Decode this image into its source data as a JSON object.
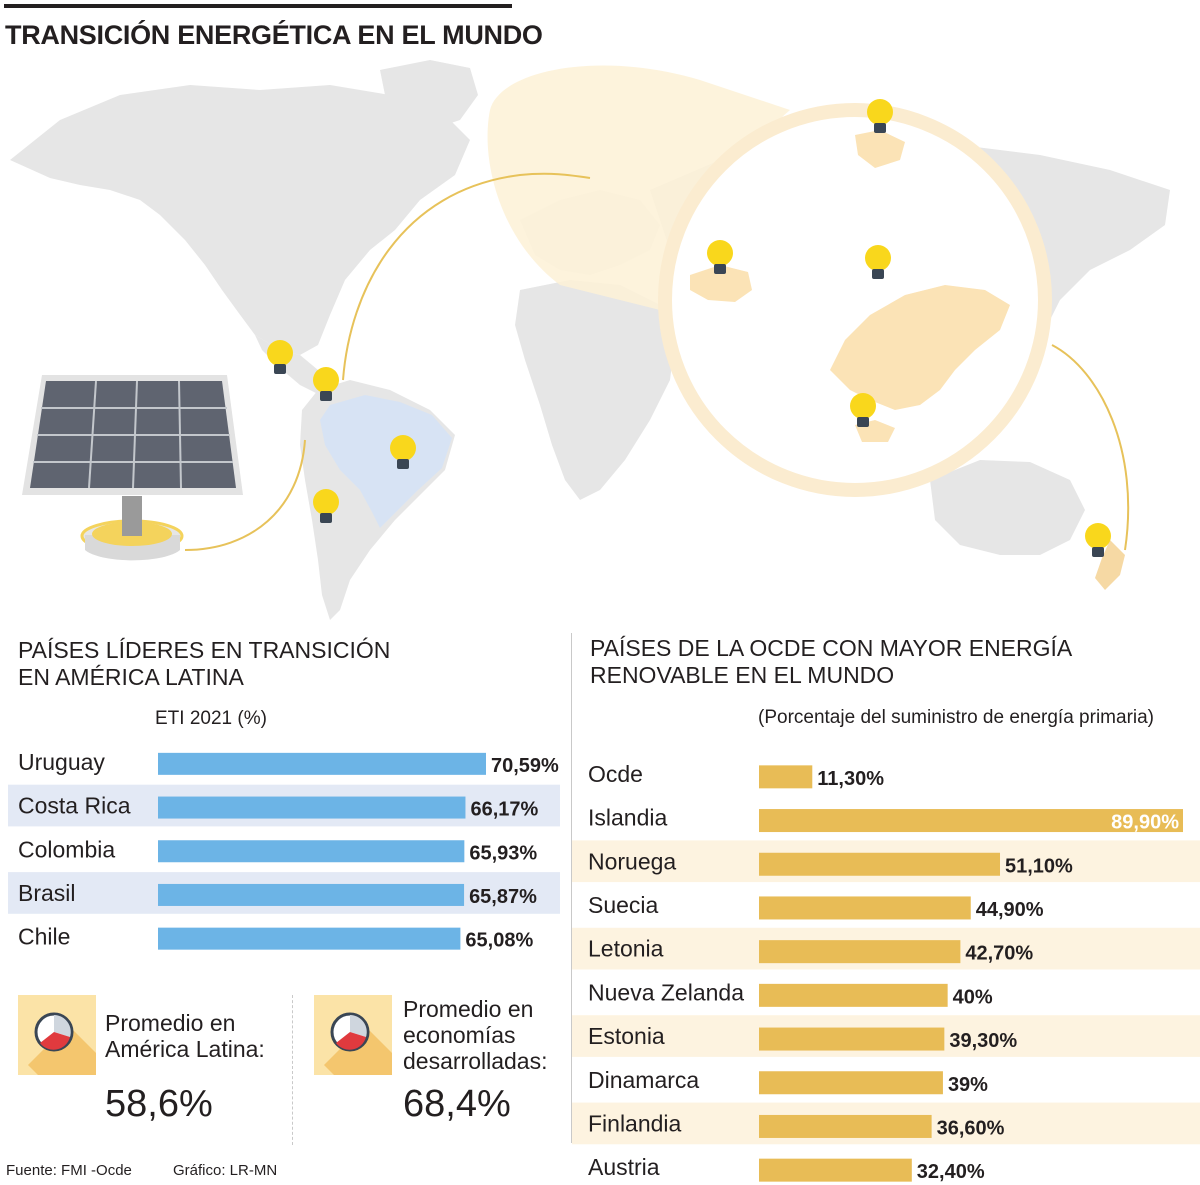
{
  "title": "TRANSICIÓN ENERGÉTICA EN EL MUNDO",
  "colors": {
    "latam_bar": "#6cb4e6",
    "ocde_bar": "#e8bc56",
    "band_blue": "#e3e9f5",
    "band_yellow": "#fdf3e0",
    "highlight_bulb": "#f9d71c"
  },
  "latam": {
    "title_line1": "PAÍSES LÍDERES EN TRANSICIÓN",
    "title_line2": "EN AMÉRICA LATINA",
    "metric_label": "ETI 2021 (%)"
  },
  "ocde": {
    "title_line1": "PAÍSES DE LA OCDE CON MAYOR ENERGÍA",
    "title_line2": "RENOVABLE EN EL MUNDO",
    "metric_label": "(Porcentaje del suministro de energía primaria)"
  },
  "chart_data": [
    {
      "type": "bar",
      "orientation": "horizontal",
      "title": "PAÍSES LÍDERES EN TRANSICIÓN EN AMÉRICA LATINA",
      "subtitle": "ETI 2021 (%)",
      "categories": [
        "Uruguay",
        "Costa Rica",
        "Colombia",
        "Brasil",
        "Chile"
      ],
      "values": [
        70.59,
        66.17,
        65.93,
        65.87,
        65.08
      ],
      "labels": [
        "70,59%",
        "66,17%",
        "65,93%",
        "65,87%",
        "65,08%"
      ],
      "color": "#6cb4e6"
    },
    {
      "type": "bar",
      "orientation": "horizontal",
      "title": "PAÍSES DE LA OCDE CON MAYOR ENERGÍA RENOVABLE EN EL MUNDO",
      "subtitle": "(Porcentaje del suministro de energía primaria)",
      "categories": [
        "Ocde",
        "Islandia",
        "Noruega",
        "Suecia",
        "Letonia",
        "Nueva Zelanda",
        "Estonia",
        "Dinamarca",
        "Finlandia",
        "Austria"
      ],
      "values": [
        11.3,
        89.9,
        51.1,
        44.9,
        42.7,
        40,
        39.3,
        39,
        36.6,
        32.4
      ],
      "labels": [
        "11,30%",
        "89,90%",
        "51,10%",
        "44,90%",
        "42,70%",
        "40%",
        "39,30%",
        "39%",
        "36,60%",
        "32,40%"
      ],
      "color": "#e8bc56"
    }
  ],
  "averages": [
    {
      "label_lines": [
        "Promedio en",
        "América Latina:"
      ],
      "value": "58,6%"
    },
    {
      "label_lines": [
        "Promedio en",
        "economías",
        "desarrolladas:"
      ],
      "value": "68,4%"
    }
  ],
  "footer": {
    "source": "Fuente: FMI -Ocde",
    "credit": "Gráfico: LR-MN"
  }
}
